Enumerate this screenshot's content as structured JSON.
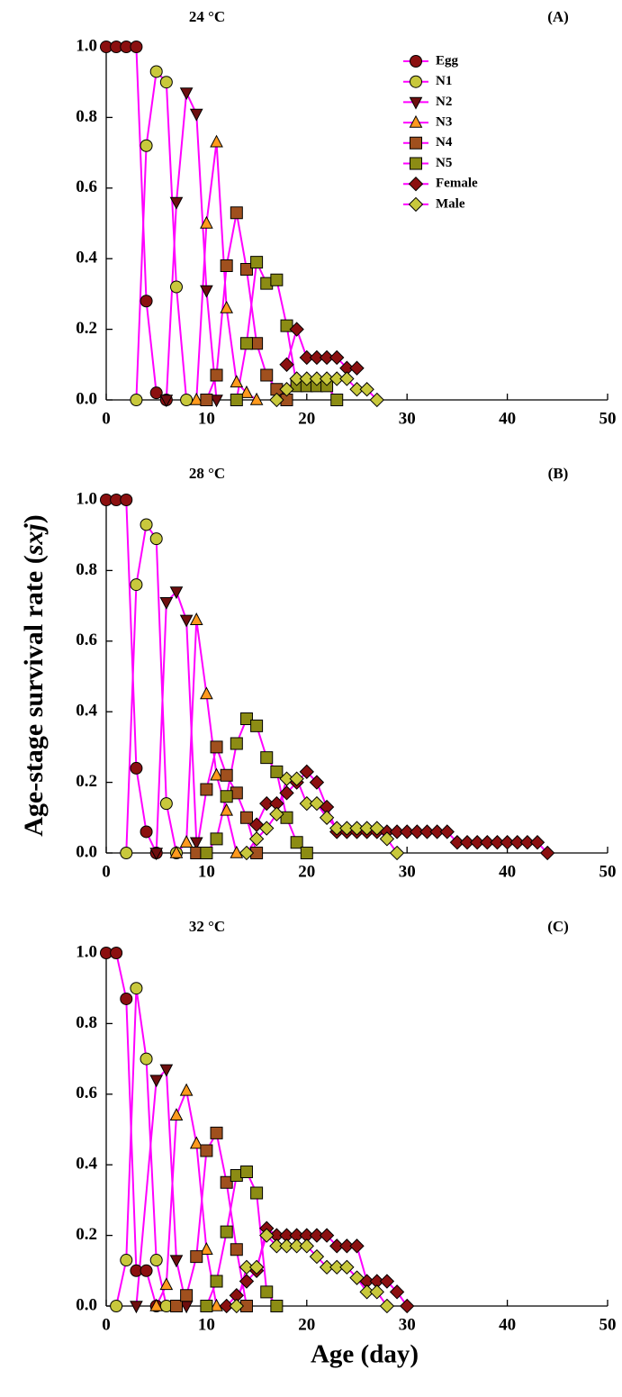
{
  "ylabel": {
    "text": "Age-stage survival rate (",
    "symbol": "sxj",
    "close": ")"
  },
  "xlabel": "Age (day)",
  "chart_data": [
    {
      "type": "line",
      "title": "24 °C",
      "panel": "(A)",
      "xlim": [
        0,
        50
      ],
      "xticks": [
        0,
        10,
        20,
        30,
        40,
        50
      ],
      "ylim": [
        0,
        1
      ],
      "yticks": [
        {
          "value": 0,
          "label": "0.0"
        },
        {
          "value": 0.2,
          "label": "0.2"
        },
        {
          "value": 0.4,
          "label": "0.4"
        },
        {
          "value": 0.6,
          "label": "0.6"
        },
        {
          "value": 0.8,
          "label": "0.8"
        },
        {
          "value": 1,
          "label": "1.0"
        }
      ],
      "line_color": "#ff00ff",
      "legend": "upper right",
      "series": [
        {
          "name": "Egg",
          "color": "#8b1010",
          "marker": "circle",
          "x": [
            0,
            1,
            2,
            3,
            4,
            5,
            6
          ],
          "values": [
            1,
            1,
            1,
            1,
            0.28,
            0.02,
            0
          ]
        },
        {
          "name": "N1",
          "color": "#c8c83c",
          "marker": "circle",
          "x": [
            3,
            4,
            5,
            6,
            7,
            8
          ],
          "values": [
            0,
            0.72,
            0.93,
            0.9,
            0.32,
            0
          ]
        },
        {
          "name": "N2",
          "color": "#6e0f0f",
          "marker": "triangle-down",
          "x": [
            6,
            7,
            8,
            9,
            10,
            11
          ],
          "values": [
            0,
            0.56,
            0.87,
            0.81,
            0.31,
            0
          ]
        },
        {
          "name": "N3",
          "color": "#ff9a1e",
          "marker": "triangle-up",
          "x": [
            9,
            10,
            11,
            12,
            13,
            14,
            15
          ],
          "values": [
            0,
            0.5,
            0.73,
            0.26,
            0.05,
            0.02,
            0
          ]
        },
        {
          "name": "N4",
          "color": "#a0501e",
          "marker": "square",
          "x": [
            10,
            11,
            12,
            13,
            14,
            15,
            16,
            17,
            18
          ],
          "values": [
            0,
            0.07,
            0.38,
            0.53,
            0.37,
            0.16,
            0.07,
            0.03,
            0
          ]
        },
        {
          "name": "N5",
          "color": "#8c8c14",
          "marker": "square",
          "x": [
            13,
            14,
            15,
            16,
            17,
            18,
            19,
            20,
            21,
            22,
            23
          ],
          "values": [
            0,
            0.16,
            0.39,
            0.33,
            0.34,
            0.21,
            0.04,
            0.04,
            0.04,
            0.04,
            0
          ]
        },
        {
          "name": "Female",
          "color": "#8b1010",
          "marker": "diamond",
          "x": [
            18,
            19,
            20,
            21,
            22,
            23,
            24,
            25
          ],
          "values": [
            0.1,
            0.2,
            0.12,
            0.12,
            0.12,
            0.12,
            0.09,
            0.09
          ]
        },
        {
          "name": "Male",
          "color": "#c8c83c",
          "marker": "diamond",
          "x": [
            17,
            18,
            19,
            20,
            21,
            22,
            23,
            24,
            25,
            26,
            27
          ],
          "values": [
            0,
            0.03,
            0.06,
            0.06,
            0.06,
            0.06,
            0.06,
            0.06,
            0.03,
            0.03,
            0
          ]
        }
      ]
    },
    {
      "type": "line",
      "title": "28 °C",
      "panel": "(B)",
      "xlim": [
        0,
        50
      ],
      "xticks": [
        0,
        10,
        20,
        30,
        40,
        50
      ],
      "ylim": [
        0,
        1
      ],
      "yticks": [
        {
          "value": 0,
          "label": "0.0"
        },
        {
          "value": 0.2,
          "label": "0.2"
        },
        {
          "value": 0.4,
          "label": "0.4"
        },
        {
          "value": 0.6,
          "label": "0.6"
        },
        {
          "value": 0.8,
          "label": "0.8"
        },
        {
          "value": 1,
          "label": "1.0"
        }
      ],
      "line_color": "#ff00ff",
      "series": [
        {
          "name": "Egg",
          "color": "#8b1010",
          "marker": "circle",
          "x": [
            0,
            1,
            2,
            3,
            4,
            5
          ],
          "values": [
            1,
            1,
            1,
            0.24,
            0.06,
            0
          ]
        },
        {
          "name": "N1",
          "color": "#c8c83c",
          "marker": "circle",
          "x": [
            2,
            3,
            4,
            5,
            6,
            7
          ],
          "values": [
            0,
            0.76,
            0.93,
            0.89,
            0.14,
            0
          ]
        },
        {
          "name": "N2",
          "color": "#6e0f0f",
          "marker": "triangle-down",
          "x": [
            5,
            6,
            7,
            8,
            9
          ],
          "values": [
            0,
            0.71,
            0.74,
            0.66,
            0.03
          ]
        },
        {
          "name": "N3",
          "color": "#ff9a1e",
          "marker": "triangle-up",
          "x": [
            7,
            8,
            9,
            10,
            11,
            12,
            13
          ],
          "values": [
            0,
            0.03,
            0.66,
            0.45,
            0.22,
            0.12,
            0
          ]
        },
        {
          "name": "N4",
          "color": "#a0501e",
          "marker": "square",
          "x": [
            9,
            10,
            11,
            12,
            13,
            14,
            15
          ],
          "values": [
            0,
            0.18,
            0.3,
            0.22,
            0.17,
            0.1,
            0
          ]
        },
        {
          "name": "N5",
          "color": "#8c8c14",
          "marker": "square",
          "x": [
            10,
            11,
            12,
            13,
            14,
            15,
            16,
            17,
            18,
            19,
            20
          ],
          "values": [
            0,
            0.04,
            0.16,
            0.31,
            0.38,
            0.36,
            0.27,
            0.23,
            0.1,
            0.03,
            0
          ]
        },
        {
          "name": "Female",
          "color": "#8b1010",
          "marker": "diamond",
          "x": [
            15,
            16,
            17,
            18,
            19,
            20,
            21,
            22,
            23,
            24,
            25,
            26,
            27,
            28,
            29,
            30,
            31,
            32,
            33,
            34,
            35,
            36,
            37,
            38,
            39,
            40,
            41,
            42,
            43,
            44
          ],
          "values": [
            0.08,
            0.14,
            0.14,
            0.17,
            0.2,
            0.23,
            0.2,
            0.13,
            0.06,
            0.06,
            0.06,
            0.06,
            0.06,
            0.06,
            0.06,
            0.06,
            0.06,
            0.06,
            0.06,
            0.06,
            0.03,
            0.03,
            0.03,
            0.03,
            0.03,
            0.03,
            0.03,
            0.03,
            0.03,
            0
          ]
        },
        {
          "name": "Male",
          "color": "#c8c83c",
          "marker": "diamond",
          "x": [
            14,
            15,
            16,
            17,
            18,
            19,
            20,
            21,
            22,
            23,
            24,
            25,
            26,
            27,
            28,
            29
          ],
          "values": [
            0,
            0.04,
            0.07,
            0.11,
            0.21,
            0.21,
            0.14,
            0.14,
            0.1,
            0.07,
            0.07,
            0.07,
            0.07,
            0.07,
            0.04,
            0
          ]
        }
      ]
    },
    {
      "type": "line",
      "title": "32 °C",
      "panel": "(C)",
      "xlim": [
        0,
        50
      ],
      "xticks": [
        0,
        10,
        20,
        30,
        40,
        50
      ],
      "ylim": [
        0,
        1
      ],
      "yticks": [
        {
          "value": 0,
          "label": "0.0"
        },
        {
          "value": 0.2,
          "label": "0.2"
        },
        {
          "value": 0.4,
          "label": "0.4"
        },
        {
          "value": 0.6,
          "label": "0.6"
        },
        {
          "value": 0.8,
          "label": "0.8"
        },
        {
          "value": 1,
          "label": "1.0"
        }
      ],
      "line_color": "#ff00ff",
      "series": [
        {
          "name": "Egg",
          "color": "#8b1010",
          "marker": "circle",
          "x": [
            0,
            1,
            2,
            3,
            4,
            5
          ],
          "values": [
            1,
            1,
            0.87,
            0.1,
            0.1,
            0
          ]
        },
        {
          "name": "N1",
          "color": "#c8c83c",
          "marker": "circle",
          "x": [
            1,
            2,
            3,
            4,
            5,
            6
          ],
          "values": [
            0,
            0.13,
            0.9,
            0.7,
            0.13,
            0
          ]
        },
        {
          "name": "N2",
          "color": "#6e0f0f",
          "marker": "triangle-down",
          "x": [
            3,
            5,
            6,
            7,
            8
          ],
          "values": [
            0,
            0.64,
            0.67,
            0.13,
            0
          ]
        },
        {
          "name": "N3",
          "color": "#ff9a1e",
          "marker": "triangle-up",
          "x": [
            5,
            6,
            7,
            8,
            9,
            10,
            11
          ],
          "values": [
            0,
            0.06,
            0.54,
            0.61,
            0.46,
            0.16,
            0
          ]
        },
        {
          "name": "N4",
          "color": "#a0501e",
          "marker": "square",
          "x": [
            7,
            8,
            9,
            10,
            11,
            12,
            13,
            14
          ],
          "values": [
            0,
            0.03,
            0.14,
            0.44,
            0.49,
            0.35,
            0.16,
            0
          ]
        },
        {
          "name": "N5",
          "color": "#8c8c14",
          "marker": "square",
          "x": [
            10,
            11,
            12,
            13,
            14,
            15,
            16,
            17
          ],
          "values": [
            0,
            0.07,
            0.21,
            0.37,
            0.38,
            0.32,
            0.04,
            0
          ]
        },
        {
          "name": "Female",
          "color": "#8b1010",
          "marker": "diamond",
          "x": [
            12,
            13,
            14,
            15,
            16,
            17,
            18,
            19,
            20,
            21,
            22,
            23,
            24,
            25,
            26,
            27,
            28,
            29,
            30
          ],
          "values": [
            0,
            0.03,
            0.07,
            0.1,
            0.22,
            0.2,
            0.2,
            0.2,
            0.2,
            0.2,
            0.2,
            0.17,
            0.17,
            0.17,
            0.07,
            0.07,
            0.07,
            0.04,
            0
          ]
        },
        {
          "name": "Male",
          "color": "#c8c83c",
          "marker": "diamond",
          "x": [
            13,
            14,
            15,
            16,
            17,
            18,
            19,
            20,
            21,
            22,
            23,
            24,
            25,
            26,
            27,
            28
          ],
          "values": [
            0,
            0.11,
            0.11,
            0.2,
            0.17,
            0.17,
            0.17,
            0.17,
            0.14,
            0.11,
            0.11,
            0.11,
            0.08,
            0.04,
            0.04,
            0
          ]
        }
      ]
    }
  ]
}
